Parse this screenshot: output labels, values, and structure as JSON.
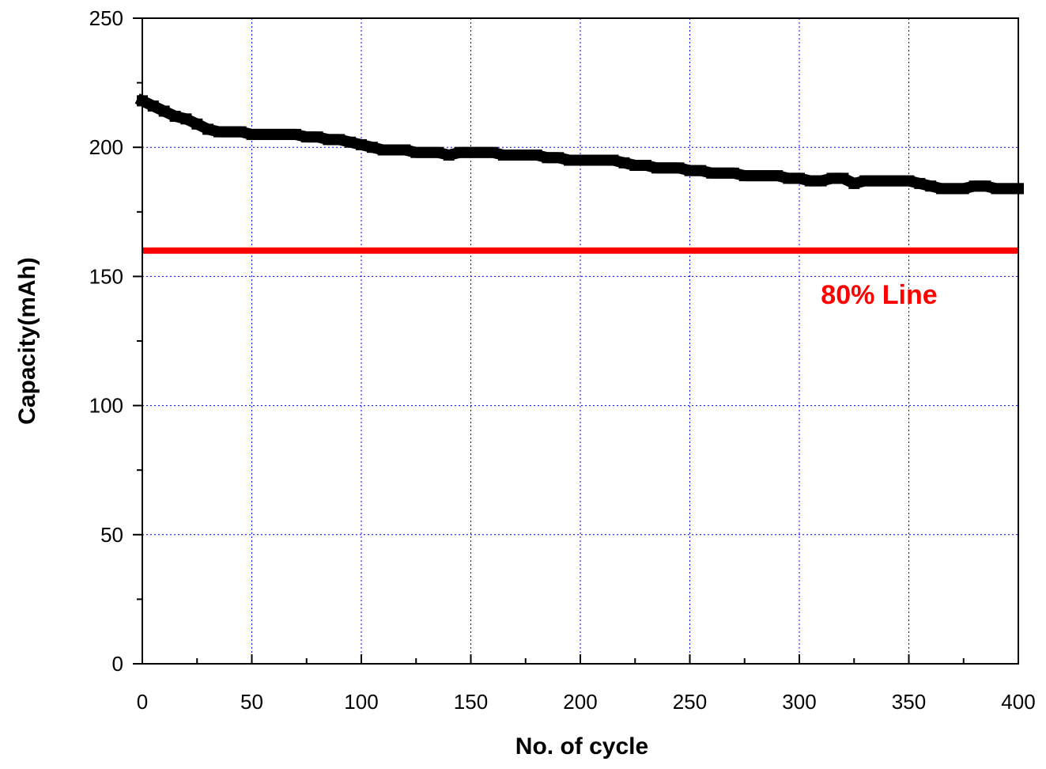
{
  "chart_data": {
    "type": "line",
    "title": "",
    "xlabel": "No. of cycle",
    "ylabel": "Capacity(mAh)",
    "xlim": [
      0,
      400
    ],
    "ylim": [
      0,
      250
    ],
    "xticks": [
      0,
      50,
      100,
      150,
      200,
      250,
      300,
      350,
      400
    ],
    "yticks": [
      0,
      50,
      100,
      150,
      200,
      250
    ],
    "grid": true,
    "colors": {
      "series": "#000000",
      "reference": "#ff0000",
      "grid": "#0000ff",
      "axis": "#000000"
    },
    "series": [
      {
        "x": [
          0,
          5,
          10,
          15,
          20,
          25,
          30,
          35,
          40,
          45,
          50,
          55,
          60,
          65,
          70,
          75,
          80,
          85,
          90,
          95,
          100,
          105,
          110,
          115,
          120,
          125,
          130,
          135,
          140,
          145,
          150,
          155,
          160,
          165,
          170,
          175,
          180,
          185,
          190,
          195,
          200,
          205,
          210,
          215,
          220,
          225,
          230,
          235,
          240,
          245,
          250,
          255,
          260,
          265,
          270,
          275,
          280,
          285,
          290,
          295,
          300,
          305,
          310,
          315,
          320,
          325,
          330,
          335,
          340,
          345,
          350,
          355,
          360,
          365,
          370,
          375,
          380,
          385,
          390,
          395,
          400
        ],
        "values": [
          218,
          216,
          214,
          212,
          211,
          209,
          207,
          206,
          206,
          206,
          205,
          205,
          205,
          205,
          205,
          204,
          204,
          203,
          203,
          202,
          201,
          200,
          199,
          199,
          199,
          198,
          198,
          198,
          197,
          198,
          198,
          198,
          198,
          197,
          197,
          197,
          197,
          196,
          196,
          195,
          195,
          195,
          195,
          195,
          194,
          193,
          193,
          192,
          192,
          192,
          191,
          191,
          190,
          190,
          190,
          189,
          189,
          189,
          189,
          188,
          188,
          187,
          187,
          188,
          188,
          186,
          187,
          187,
          187,
          187,
          187,
          186,
          185,
          184,
          184,
          184,
          185,
          185,
          184,
          184,
          184
        ]
      }
    ],
    "reference_line": {
      "y": 160,
      "label": "80% Line"
    }
  }
}
